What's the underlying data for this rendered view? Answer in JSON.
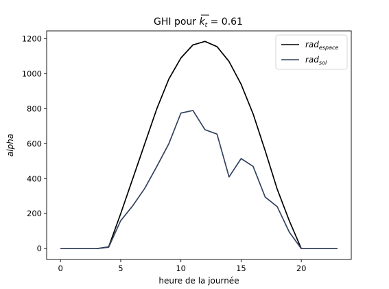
{
  "chart_data": {
    "type": "line",
    "title_prefix": "GHI pour ",
    "title_symbol": "k",
    "title_symbol_sub": "t",
    "title_suffix": " = 0.61",
    "xlabel": "heure de la journée",
    "ylabel": "alpha",
    "xlim": [
      -1.15,
      24.15
    ],
    "ylim": [
      -62,
      1245
    ],
    "xticks": [
      0,
      5,
      10,
      15,
      20
    ],
    "yticks": [
      0,
      200,
      400,
      600,
      800,
      1000,
      1200
    ],
    "x": [
      0,
      1,
      2,
      3,
      4,
      5,
      6,
      7,
      8,
      9,
      10,
      11,
      12,
      13,
      14,
      15,
      16,
      17,
      18,
      19,
      20,
      21,
      22,
      23
    ],
    "series": [
      {
        "name_base": "rad",
        "name_sub": "espace",
        "color": "#000000",
        "values": [
          0,
          0,
          0,
          0,
          10,
          200,
          400,
          600,
          800,
          970,
          1090,
          1165,
          1185,
          1155,
          1070,
          940,
          770,
          560,
          340,
          160,
          0,
          0,
          0,
          0
        ]
      },
      {
        "name_base": "rad",
        "name_sub": "sol",
        "color": "#33425e",
        "values": [
          0,
          0,
          0,
          0,
          8,
          160,
          245,
          345,
          470,
          600,
          775,
          790,
          680,
          655,
          410,
          515,
          470,
          295,
          240,
          95,
          0,
          0,
          0,
          0
        ]
      }
    ],
    "legend_position": "top-right",
    "grid": false
  }
}
